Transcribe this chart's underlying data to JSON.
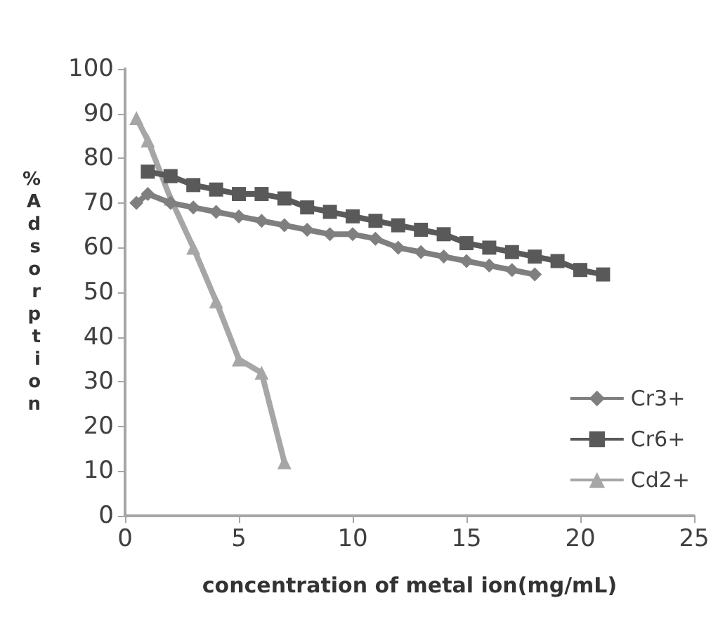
{
  "chart_data": {
    "type": "line",
    "xlabel": "concentration of metal ion(mg/mL)",
    "ylabel": "% Adsorption",
    "xlim": [
      0,
      25
    ],
    "xticks": [
      0,
      5,
      10,
      15,
      20,
      25
    ],
    "ylim": [
      0,
      100
    ],
    "yticks": [
      0,
      10,
      20,
      30,
      40,
      50,
      60,
      70,
      80,
      90,
      100
    ],
    "grid": false,
    "legend": "bottom right",
    "series": [
      {
        "name": "Cr3+",
        "color": "#7f7f7f",
        "marker": "diamond",
        "x": [
          0.5,
          1,
          2,
          3,
          4,
          5,
          6,
          7,
          8,
          9,
          10,
          11,
          12,
          13,
          14,
          15,
          16,
          17,
          18
        ],
        "values": [
          70,
          72,
          70,
          69,
          68,
          67,
          66,
          65,
          64,
          63,
          63,
          62,
          60,
          59,
          58,
          57,
          56,
          55,
          54
        ]
      },
      {
        "name": "Cr6+",
        "color": "#595959",
        "marker": "square",
        "x": [
          1,
          2,
          3,
          4,
          5,
          6,
          7,
          8,
          9,
          10,
          11,
          12,
          13,
          14,
          15,
          16,
          17,
          18,
          19,
          20,
          21
        ],
        "values": [
          77,
          76,
          74,
          73,
          72,
          72,
          71,
          69,
          68,
          67,
          66,
          65,
          64,
          63,
          61,
          60,
          59,
          58,
          57,
          55,
          54
        ]
      },
      {
        "name": "Cd2+",
        "color": "#a6a6a6",
        "marker": "triangle",
        "x": [
          0.5,
          1,
          2,
          3,
          4,
          5,
          6,
          7
        ],
        "values": [
          89,
          84,
          71,
          60,
          48,
          35,
          32,
          12
        ]
      }
    ]
  }
}
